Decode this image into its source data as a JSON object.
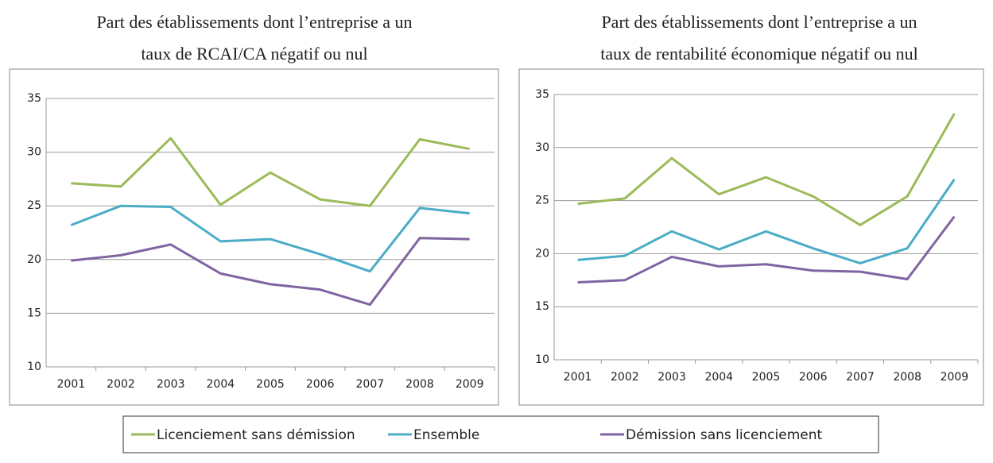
{
  "chart_data": [
    {
      "type": "line",
      "title": "Part des établissements dont l’entreprise a un taux de RCAI/CA négatif ou nul",
      "categories": [
        "2001",
        "2002",
        "2003",
        "2004",
        "2005",
        "2006",
        "2007",
        "2008",
        "2009"
      ],
      "series": [
        {
          "name": "Licenciement sans démission",
          "color": "#9bbb59",
          "values": [
            27.1,
            26.8,
            31.3,
            25.1,
            28.1,
            25.6,
            25.0,
            31.2,
            30.3
          ]
        },
        {
          "name": "Ensemble",
          "color": "#4bacc6",
          "values": [
            23.2,
            25.0,
            24.9,
            21.7,
            21.9,
            20.5,
            18.9,
            24.8,
            24.3
          ]
        },
        {
          "name": "Démission sans licenciement",
          "color": "#8064a2",
          "values": [
            19.9,
            20.4,
            21.4,
            18.7,
            17.7,
            17.2,
            15.8,
            22.0,
            21.9
          ]
        }
      ],
      "ylim": [
        10,
        35
      ],
      "yticks": [
        10,
        15,
        20,
        25,
        30,
        35
      ],
      "grid": true
    },
    {
      "type": "line",
      "title": "Part des établissements dont l’entreprise a un taux de rentabilité économique négatif ou nul",
      "categories": [
        "2001",
        "2002",
        "2003",
        "2004",
        "2005",
        "2006",
        "2007",
        "2008",
        "2009"
      ],
      "series": [
        {
          "color": "#9bbb59",
          "values": [
            24.7,
            25.2,
            29.0,
            25.6,
            27.2,
            25.4,
            22.7,
            25.4,
            33.2
          ]
        },
        {
          "color": "#4bacc6",
          "values": [
            19.4,
            19.8,
            22.1,
            20.4,
            22.1,
            20.5,
            19.1,
            20.5,
            27.0
          ]
        },
        {
          "color": "#8064a2",
          "values": [
            17.3,
            17.5,
            19.7,
            18.8,
            19.0,
            18.4,
            18.3,
            17.6,
            23.5
          ]
        }
      ],
      "ylim": [
        10,
        35
      ],
      "yticks": [
        10,
        15,
        20,
        25,
        30,
        35
      ],
      "grid": true
    }
  ]
}
